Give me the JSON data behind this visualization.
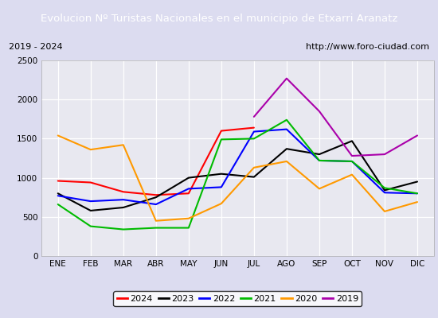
{
  "title": "Evolucion Nº Turistas Nacionales en el municipio de Etxarri Aranatz",
  "subtitle_left": "2019 - 2024",
  "subtitle_right": "http://www.foro-ciudad.com",
  "months": [
    "ENE",
    "FEB",
    "MAR",
    "ABR",
    "MAY",
    "JUN",
    "JUL",
    "AGO",
    "SEP",
    "OCT",
    "NOV",
    "DIC"
  ],
  "ylim": [
    0,
    2500
  ],
  "yticks": [
    0,
    500,
    1000,
    1500,
    2000,
    2500
  ],
  "series": {
    "2024": {
      "color": "#ff0000",
      "values": [
        960,
        940,
        820,
        780,
        800,
        1600,
        1640,
        null,
        null,
        null,
        null,
        null
      ]
    },
    "2023": {
      "color": "#000000",
      "values": [
        800,
        580,
        620,
        750,
        1000,
        1050,
        1010,
        1370,
        1300,
        1470,
        840,
        950
      ]
    },
    "2022": {
      "color": "#0000ff",
      "values": [
        770,
        700,
        720,
        660,
        860,
        880,
        1590,
        1620,
        1220,
        1210,
        810,
        800
      ]
    },
    "2021": {
      "color": "#00bb00",
      "values": [
        660,
        380,
        340,
        360,
        360,
        1490,
        1500,
        1740,
        1220,
        1210,
        870,
        800
      ]
    },
    "2020": {
      "color": "#ff9900",
      "values": [
        1540,
        1360,
        1420,
        450,
        480,
        670,
        1130,
        1210,
        860,
        1040,
        570,
        690
      ]
    },
    "2019": {
      "color": "#aa00aa",
      "values": [
        null,
        null,
        null,
        null,
        null,
        null,
        1780,
        2270,
        1850,
        1280,
        1300,
        1540
      ]
    }
  },
  "title_bg_color": "#4472c4",
  "title_text_color": "#ffffff",
  "plot_bg_color": "#e8e8f0",
  "grid_color": "#ffffff",
  "legend_order": [
    "2024",
    "2023",
    "2022",
    "2021",
    "2020",
    "2019"
  ],
  "fig_bg_color": "#dcdcf0"
}
